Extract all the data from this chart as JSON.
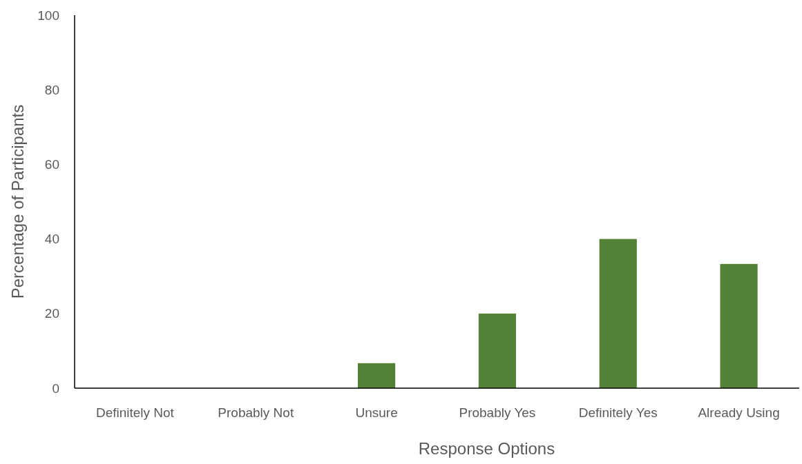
{
  "chart_data": {
    "type": "bar",
    "xlabel": "Response Options",
    "ylabel": "Percentage of Participants",
    "categories": [
      "Definitely Not",
      "Probably Not",
      "Unsure",
      "Probably Yes",
      "Definitely Yes",
      "Already Using"
    ],
    "values": [
      0,
      0,
      6.7,
      20,
      40,
      33.3
    ],
    "color": "#538135",
    "ylim": [
      0,
      100
    ],
    "yticks": [
      0,
      20,
      40,
      60,
      80,
      100
    ],
    "grid": false
  }
}
